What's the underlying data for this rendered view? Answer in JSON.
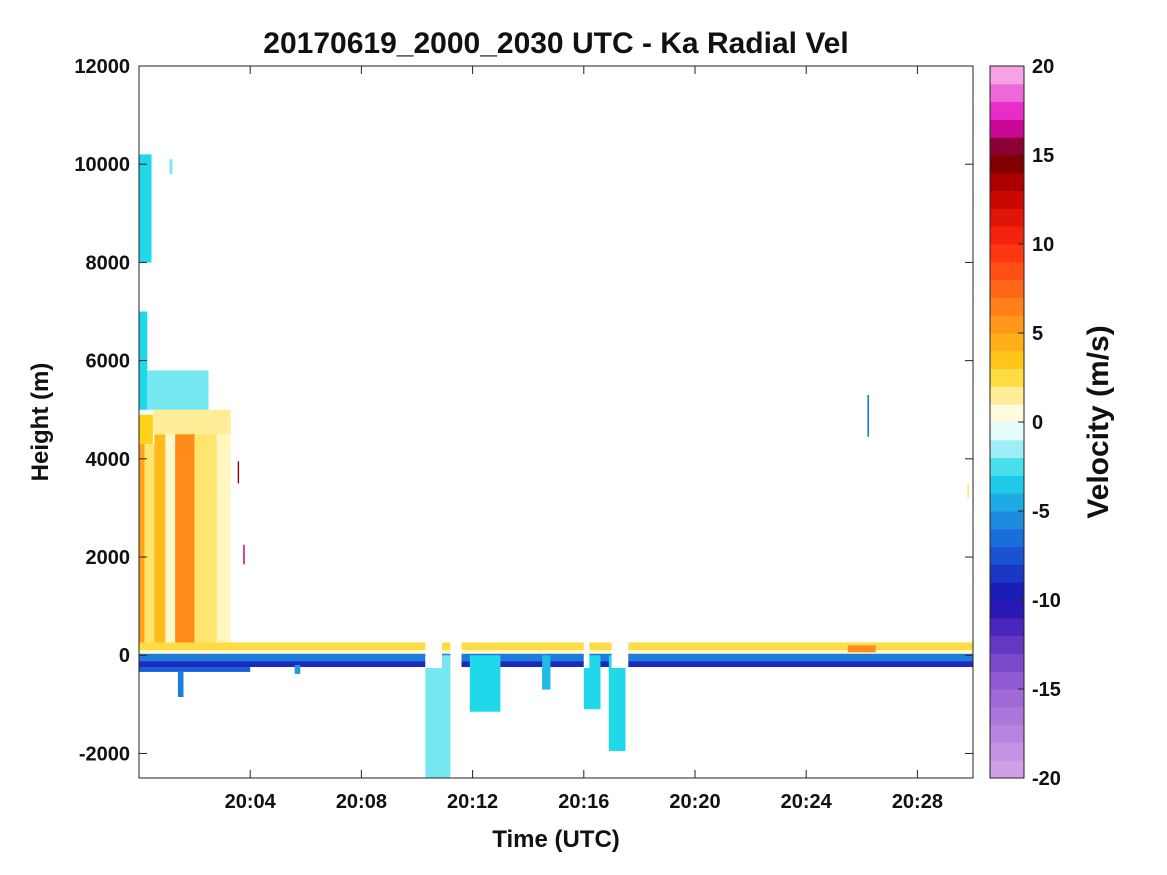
{
  "chart_data": {
    "type": "heatmap",
    "title": "20170619_2000_2030 UTC - Ka Radial Vel",
    "xlabel": "Time (UTC)",
    "ylabel": "Height (m)",
    "xlim_minutes": [
      0,
      30
    ],
    "ylim": [
      -2500,
      12000
    ],
    "x_ticks": [
      {
        "label": "20:04",
        "minute": 4
      },
      {
        "label": "20:08",
        "minute": 8
      },
      {
        "label": "20:12",
        "minute": 12
      },
      {
        "label": "20:16",
        "minute": 16
      },
      {
        "label": "20:20",
        "minute": 20
      },
      {
        "label": "20:24",
        "minute": 24
      },
      {
        "label": "20:28",
        "minute": 28
      }
    ],
    "y_ticks": [
      {
        "label": "12000",
        "value": 12000
      },
      {
        "label": "10000",
        "value": 10000
      },
      {
        "label": "8000",
        "value": 8000
      },
      {
        "label": "6000",
        "value": 6000
      },
      {
        "label": "4000",
        "value": 4000
      },
      {
        "label": "2000",
        "value": 2000
      },
      {
        "label": "0",
        "value": 0
      },
      {
        "label": "-2000",
        "value": -2000
      }
    ],
    "colorbar": {
      "label": "Velocity (m/s)",
      "range": [
        -20,
        20
      ],
      "ticks": [
        {
          "label": "20",
          "value": 20
        },
        {
          "label": "15",
          "value": 15
        },
        {
          "label": "10",
          "value": 10
        },
        {
          "label": "5",
          "value": 5
        },
        {
          "label": "0",
          "value": 0
        },
        {
          "label": "-5",
          "value": -5
        },
        {
          "label": "-10",
          "value": -10
        },
        {
          "label": "-15",
          "value": -15
        },
        {
          "label": "-20",
          "value": -20
        }
      ],
      "stops": [
        {
          "v": -20,
          "color": "#d6a6e8"
        },
        {
          "v": -15,
          "color": "#9b62d6"
        },
        {
          "v": -12,
          "color": "#5a2fc0"
        },
        {
          "v": -10,
          "color": "#1a10b0"
        },
        {
          "v": -7,
          "color": "#1a5fd8"
        },
        {
          "v": -5,
          "color": "#1f9be0"
        },
        {
          "v": -3,
          "color": "#1fd8ea"
        },
        {
          "v": -1,
          "color": "#c8f6f8"
        },
        {
          "v": 0,
          "color": "#ffffff"
        },
        {
          "v": 1,
          "color": "#fff6c0"
        },
        {
          "v": 3,
          "color": "#ffd21a"
        },
        {
          "v": 6,
          "color": "#ff8c1a"
        },
        {
          "v": 10,
          "color": "#ff2a10"
        },
        {
          "v": 13,
          "color": "#c00000"
        },
        {
          "v": 15,
          "color": "#6a0000"
        },
        {
          "v": 16,
          "color": "#b0006a"
        },
        {
          "v": 17,
          "color": "#e610c0"
        },
        {
          "v": 20,
          "color": "#f8c0ee"
        }
      ]
    },
    "regions": [
      {
        "t0": 0.0,
        "t1": 30.0,
        "h0": 100,
        "h1": 260,
        "v": 2.5
      },
      {
        "t0": 0.0,
        "t1": 30.0,
        "h0": 30,
        "h1": 100,
        "v": 0.8
      },
      {
        "t0": 0.0,
        "t1": 30.0,
        "h0": -120,
        "h1": 30,
        "v": -6
      },
      {
        "t0": 0.0,
        "t1": 30.0,
        "h0": -240,
        "h1": -120,
        "v": -9
      },
      {
        "t0": 0.0,
        "t1": 4.0,
        "h0": -340,
        "h1": -240,
        "v": -7
      },
      {
        "t0": 0.0,
        "t1": 0.5,
        "h0": 4300,
        "h1": 4900,
        "v": 3
      },
      {
        "t0": 0.0,
        "t1": 0.2,
        "h0": 260,
        "h1": 4300,
        "v": 5
      },
      {
        "t0": 0.2,
        "t1": 0.55,
        "h0": 260,
        "h1": 4300,
        "v": 2
      },
      {
        "t0": 0.55,
        "t1": 0.95,
        "h0": 260,
        "h1": 4500,
        "v": 4
      },
      {
        "t0": 0.95,
        "t1": 1.3,
        "h0": 260,
        "h1": 4500,
        "v": 0.8
      },
      {
        "t0": 1.3,
        "t1": 2.0,
        "h0": 260,
        "h1": 4600,
        "v": 6
      },
      {
        "t0": 2.0,
        "t1": 2.8,
        "h0": 260,
        "h1": 4900,
        "v": 2
      },
      {
        "t0": 2.8,
        "t1": 3.3,
        "h0": 260,
        "h1": 4800,
        "v": 1
      },
      {
        "t0": 0.5,
        "t1": 3.3,
        "h0": 4500,
        "h1": 5000,
        "v": 1.5
      },
      {
        "t0": 0.0,
        "t1": 0.3,
        "h0": 5000,
        "h1": 7000,
        "v": -3
      },
      {
        "t0": 0.3,
        "t1": 2.5,
        "h0": 5000,
        "h1": 5800,
        "v": -2
      },
      {
        "t0": 0.0,
        "t1": 0.45,
        "h0": 8000,
        "h1": 10200,
        "v": -3
      },
      {
        "t0": 1.1,
        "t1": 1.2,
        "h0": 9800,
        "h1": 10100,
        "v": -2
      },
      {
        "t0": 3.55,
        "t1": 3.6,
        "h0": 3500,
        "h1": 3950,
        "v": 14
      },
      {
        "t0": 3.75,
        "t1": 3.8,
        "h0": 1850,
        "h1": 2250,
        "v": 16
      },
      {
        "t0": 1.4,
        "t1": 1.6,
        "h0": -850,
        "h1": -340,
        "v": -6
      },
      {
        "t0": 5.6,
        "t1": 5.8,
        "h0": -380,
        "h1": -200,
        "v": -5
      },
      {
        "t0": 10.3,
        "t1": 11.2,
        "h0": -2500,
        "h1": 0,
        "v": -2
      },
      {
        "t0": 11.9,
        "t1": 13.0,
        "h0": -1150,
        "h1": 0,
        "v": -3
      },
      {
        "t0": 14.5,
        "t1": 14.8,
        "h0": -700,
        "h1": 0,
        "v": -4
      },
      {
        "t0": 16.0,
        "t1": 16.6,
        "h0": -1100,
        "h1": 0,
        "v": -3
      },
      {
        "t0": 16.9,
        "t1": 17.5,
        "h0": -1950,
        "h1": 0,
        "v": -3
      },
      {
        "t0": 26.2,
        "t1": 26.26,
        "h0": 4450,
        "h1": 5300,
        "v": -6
      },
      {
        "t0": 25.5,
        "t1": 26.5,
        "h0": 60,
        "h1": 200,
        "v": 6
      },
      {
        "t0": 29.8,
        "t1": 29.85,
        "h0": 3200,
        "h1": 3500,
        "v": 2
      }
    ],
    "gaps": [
      {
        "t0": 10.3,
        "t1": 10.9
      },
      {
        "t0": 11.2,
        "t1": 11.6
      },
      {
        "t0": 16.0,
        "t1": 16.2
      },
      {
        "t0": 17.0,
        "t1": 17.6
      }
    ]
  }
}
